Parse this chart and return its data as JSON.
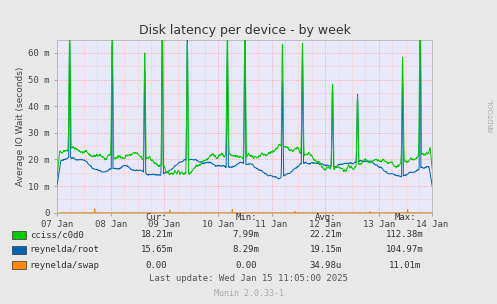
{
  "title": "Disk latency per device - by week",
  "ylabel": "Average IO Wait (seconds)",
  "rrdtool_label": "RRDTOOL",
  "munin_label": "Munin 2.0.33-1",
  "last_update": "Last update: Wed Jan 15 11:05:00 2025",
  "xlim": [
    0,
    604800
  ],
  "ylim": [
    0,
    65000000
  ],
  "yticks": [
    0,
    10000000,
    20000000,
    30000000,
    40000000,
    50000000,
    60000000
  ],
  "ytick_labels": [
    "0",
    "10 m",
    "20 m",
    "30 m",
    "40 m",
    "50 m",
    "60 m"
  ],
  "xtick_positions": [
    0,
    86400,
    172800,
    259200,
    345600,
    432000,
    518400,
    604800
  ],
  "xtick_labels": [
    "07 Jan",
    "08 Jan",
    "09 Jan",
    "10 Jan",
    "11 Jan",
    "12 Jan",
    "13 Jan",
    "14 Jan"
  ],
  "bg_color": "#e8e8e8",
  "plot_bg_color": "#e8e8f8",
  "grid_major_color": "#ff9999",
  "grid_minor_color": "#ffcccc",
  "series": {
    "cciss_c0d0": {
      "color": "#00cc00",
      "label": "cciss/c0d0",
      "cur": "18.21m",
      "min": "7.99m",
      "avg": "22.21m",
      "max": "112.38m"
    },
    "reynelda_root": {
      "color": "#0066b3",
      "label": "reynelda/root",
      "cur": "15.65m",
      "min": "8.29m",
      "avg": "19.15m",
      "max": "104.97m"
    },
    "reynelda_swap": {
      "color": "#ff8800",
      "label": "reynelda/swap",
      "cur": "0.00",
      "min": "0.00",
      "avg": "34.98u",
      "max": "11.01m"
    }
  },
  "col_headers": [
    "Cur:",
    "Min:",
    "Avg:",
    "Max:"
  ]
}
